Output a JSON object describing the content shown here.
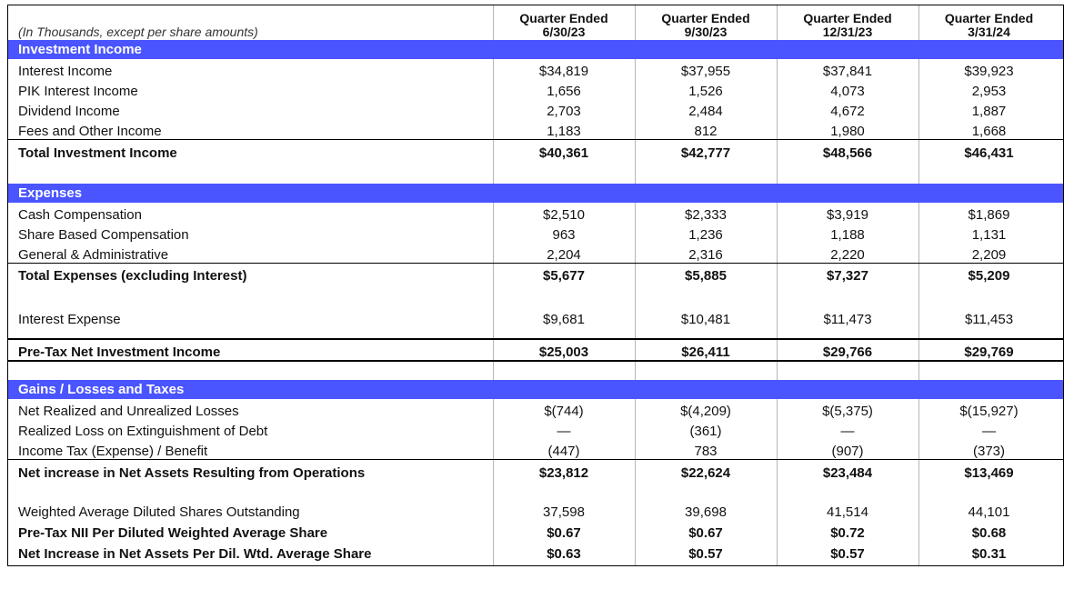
{
  "header": {
    "units_note": "(In Thousands, except per share amounts)",
    "columns": [
      {
        "line1": "Quarter Ended",
        "line2": "6/30/23"
      },
      {
        "line1": "Quarter Ended",
        "line2": "9/30/23"
      },
      {
        "line1": "Quarter Ended",
        "line2": "12/31/23"
      },
      {
        "line1": "Quarter Ended",
        "line2": "3/31/24"
      }
    ]
  },
  "investment_income": {
    "title": "Investment Income",
    "rows": [
      {
        "label": "Interest Income",
        "values": [
          "$34,819",
          "$37,955",
          "$37,841",
          "$39,923"
        ]
      },
      {
        "label": "PIK Interest Income",
        "values": [
          "1,656",
          "1,526",
          "4,073",
          "2,953"
        ]
      },
      {
        "label": "Dividend Income",
        "values": [
          "2,703",
          "2,484",
          "4,672",
          "1,887"
        ]
      },
      {
        "label": "Fees and Other Income",
        "values": [
          "1,183",
          "812",
          "1,980",
          "1,668"
        ]
      }
    ],
    "total": {
      "label": "Total Investment Income",
      "values": [
        "$40,361",
        "$42,777",
        "$48,566",
        "$46,431"
      ]
    }
  },
  "expenses": {
    "title": "Expenses",
    "rows": [
      {
        "label": "Cash Compensation",
        "values": [
          "$2,510",
          "$2,333",
          "$3,919",
          "$1,869"
        ]
      },
      {
        "label": "Share Based Compensation",
        "values": [
          "963",
          "1,236",
          "1,188",
          "1,131"
        ]
      },
      {
        "label": "General & Administrative",
        "values": [
          "2,204",
          "2,316",
          "2,220",
          "2,209"
        ]
      }
    ],
    "total": {
      "label": "Total Expenses (excluding Interest)",
      "values": [
        "$5,677",
        "$5,885",
        "$7,327",
        "$5,209"
      ]
    },
    "interest": {
      "label": "Interest Expense",
      "values": [
        "$9,681",
        "$10,481",
        "$11,473",
        "$11,453"
      ]
    }
  },
  "pretax_nii": {
    "label": "Pre-Tax Net Investment Income",
    "values": [
      "$25,003",
      "$26,411",
      "$29,766",
      "$29,769"
    ]
  },
  "gains": {
    "title": "Gains / Losses and Taxes",
    "rows": [
      {
        "label": "Net Realized and Unrealized Losses",
        "values": [
          "$(744)",
          "$(4,209)",
          "$(5,375)",
          "$(15,927)"
        ]
      },
      {
        "label": "Realized Loss on Extinguishment of Debt",
        "values": [
          "—",
          "(361)",
          "—",
          "—"
        ]
      },
      {
        "label": "Income Tax (Expense) / Benefit",
        "values": [
          "(447)",
          "783",
          "(907)",
          "(373)"
        ]
      }
    ],
    "total": {
      "label": "Net increase in Net Assets Resulting from Operations",
      "values": [
        "$23,812",
        "$22,624",
        "$23,484",
        "$13,469"
      ]
    }
  },
  "per_share": {
    "rows": [
      {
        "label": "Weighted Average Diluted Shares Outstanding",
        "values": [
          "37,598",
          "39,698",
          "41,514",
          "44,101"
        ],
        "bold": false
      },
      {
        "label": "Pre-Tax NII Per Diluted Weighted Average Share",
        "values": [
          "$0.67",
          "$0.67",
          "$0.72",
          "$0.68"
        ],
        "bold": true
      },
      {
        "label": "Net Increase in Net Assets Per Dil. Wtd. Average Share",
        "values": [
          "$0.63",
          "$0.57",
          "$0.57",
          "$0.31"
        ],
        "bold": true
      }
    ]
  }
}
